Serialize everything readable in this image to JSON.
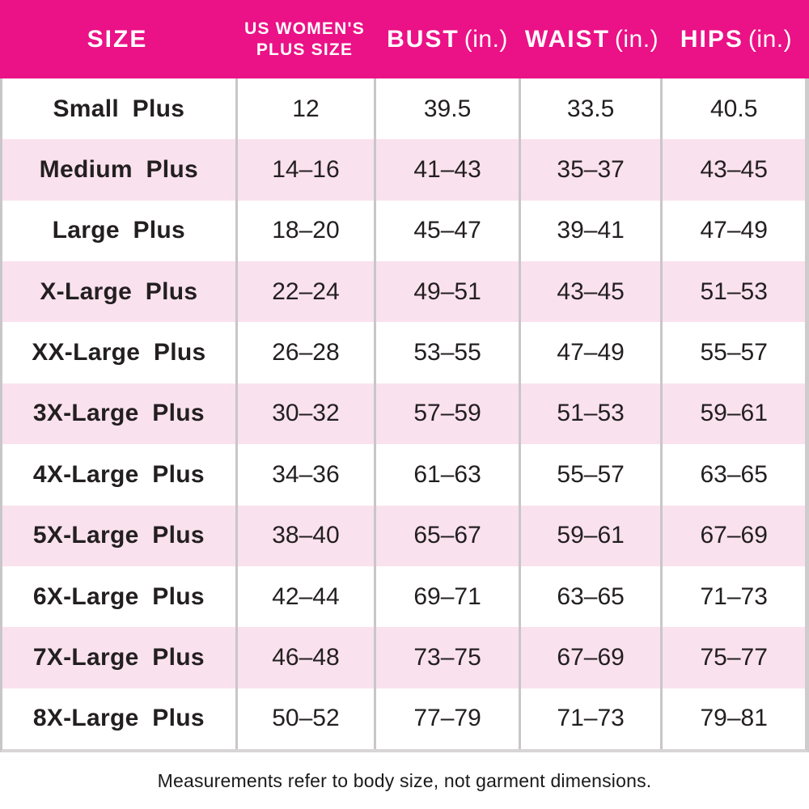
{
  "colors": {
    "header_bg": "#EB1186",
    "header_text": "#FFFFFF",
    "row_bg": "#FFFFFF",
    "row_alt_bg": "#FAE1EE",
    "divider": "#C9C6C8",
    "body_text": "#231F20"
  },
  "table": {
    "columns": [
      {
        "label": "SIZE"
      },
      {
        "label_line1": "US WOMEN'S",
        "label_line2": "PLUS SIZE"
      },
      {
        "label": "BUST",
        "unit": "(in.)"
      },
      {
        "label": "WAIST",
        "unit": "(in.)"
      },
      {
        "label": "HIPS",
        "unit": "(in.)"
      }
    ],
    "rows": [
      {
        "size": "Small Plus",
        "plus_size": "12",
        "bust": "39.5",
        "waist": "33.5",
        "hips": "40.5"
      },
      {
        "size": "Medium Plus",
        "plus_size": "14–16",
        "bust": "41–43",
        "waist": "35–37",
        "hips": "43–45"
      },
      {
        "size": "Large Plus",
        "plus_size": "18–20",
        "bust": "45–47",
        "waist": "39–41",
        "hips": "47–49"
      },
      {
        "size": "X-Large Plus",
        "plus_size": "22–24",
        "bust": "49–51",
        "waist": "43–45",
        "hips": "51–53"
      },
      {
        "size": "XX-Large Plus",
        "plus_size": "26–28",
        "bust": "53–55",
        "waist": "47–49",
        "hips": "55–57"
      },
      {
        "size": "3X-Large Plus",
        "plus_size": "30–32",
        "bust": "57–59",
        "waist": "51–53",
        "hips": "59–61"
      },
      {
        "size": "4X-Large Plus",
        "plus_size": "34–36",
        "bust": "61–63",
        "waist": "55–57",
        "hips": "63–65"
      },
      {
        "size": "5X-Large Plus",
        "plus_size": "38–40",
        "bust": "65–67",
        "waist": "59–61",
        "hips": "67–69"
      },
      {
        "size": "6X-Large Plus",
        "plus_size": "42–44",
        "bust": "69–71",
        "waist": "63–65",
        "hips": "71–73"
      },
      {
        "size": "7X-Large Plus",
        "plus_size": "46–48",
        "bust": "73–75",
        "waist": "67–69",
        "hips": "75–77"
      },
      {
        "size": "8X-Large Plus",
        "plus_size": "50–52",
        "bust": "77–79",
        "waist": "71–73",
        "hips": "79–81"
      }
    ]
  },
  "footer": {
    "note": "Measurements refer to body size, not garment dimensions."
  },
  "chart_data": {
    "type": "table",
    "title": "US Women's Plus Size Chart",
    "columns": [
      "SIZE",
      "US WOMEN'S PLUS SIZE",
      "BUST (in.)",
      "WAIST (in.)",
      "HIPS (in.)"
    ],
    "rows": [
      [
        "Small Plus",
        "12",
        "39.5",
        "33.5",
        "40.5"
      ],
      [
        "Medium Plus",
        "14–16",
        "41–43",
        "35–37",
        "43–45"
      ],
      [
        "Large Plus",
        "18–20",
        "45–47",
        "39–41",
        "47–49"
      ],
      [
        "X-Large Plus",
        "22–24",
        "49–51",
        "43–45",
        "51–53"
      ],
      [
        "XX-Large Plus",
        "26–28",
        "53–55",
        "47–49",
        "55–57"
      ],
      [
        "3X-Large Plus",
        "30–32",
        "57–59",
        "51–53",
        "59–61"
      ],
      [
        "4X-Large Plus",
        "34–36",
        "61–63",
        "55–57",
        "63–65"
      ],
      [
        "5X-Large Plus",
        "38–40",
        "65–67",
        "59–61",
        "67–69"
      ],
      [
        "6X-Large Plus",
        "42–44",
        "69–71",
        "63–65",
        "71–73"
      ],
      [
        "7X-Large Plus",
        "46–48",
        "73–75",
        "67–69",
        "75–77"
      ],
      [
        "8X-Large Plus",
        "50–52",
        "77–79",
        "71–73",
        "79–81"
      ]
    ],
    "notes": "Alternating white and light-pink rows; magenta header; footnote below table."
  }
}
